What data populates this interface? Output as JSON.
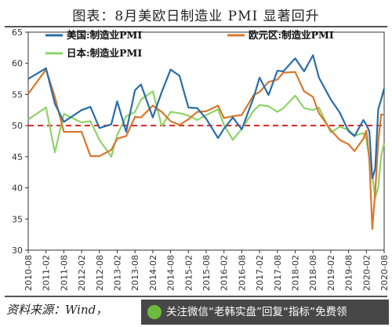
{
  "title": "图表：8月美欧日制造业 PMI 显著回升",
  "source": "资料来源：Wind，",
  "watermark": "关注微信“老韩实盘”回复“指标”免费领",
  "chart_data": {
    "type": "line",
    "title": "图表：8月美欧日制造业 PMI 显著回升",
    "xlabel": "",
    "ylabel": "",
    "ylim": [
      30,
      65
    ],
    "yticks": [
      30,
      35,
      40,
      45,
      50,
      55,
      60,
      65
    ],
    "xticks": [
      "2010-08",
      "2011-02",
      "2011-08",
      "2012-02",
      "2012-08",
      "2013-02",
      "2013-08",
      "2014-02",
      "2014-08",
      "2015-02",
      "2015-08",
      "2016-02",
      "2016-08",
      "2017-02",
      "2017-08",
      "2018-02",
      "2018-08",
      "2019-02",
      "2019-08",
      "2020-02",
      "2020-08"
    ],
    "reference_line": {
      "y": 50,
      "color": "#d62424",
      "style": "dashed"
    },
    "legend": "top",
    "series": [
      {
        "name": "美国:制造业PMI",
        "color": "#2a6ea8",
        "x": [
          "2010-08",
          "2011-02",
          "2011-05",
          "2011-08",
          "2012-02",
          "2012-05",
          "2012-08",
          "2012-12",
          "2013-02",
          "2013-05",
          "2013-08",
          "2013-10",
          "2014-02",
          "2014-05",
          "2014-08",
          "2014-11",
          "2015-02",
          "2015-05",
          "2015-08",
          "2015-12",
          "2016-02",
          "2016-05",
          "2016-08",
          "2016-12",
          "2017-02",
          "2017-05",
          "2017-08",
          "2017-10",
          "2018-02",
          "2018-05",
          "2018-08",
          "2018-10",
          "2019-02",
          "2019-05",
          "2019-08",
          "2019-10",
          "2020-01",
          "2020-02",
          "2020-03",
          "2020-04",
          "2020-05",
          "2020-06",
          "2020-07",
          "2020-08"
        ],
        "values": [
          57.5,
          59.2,
          53.5,
          50.6,
          52.5,
          53.0,
          49.6,
          50.2,
          53.9,
          49.0,
          55.7,
          56.6,
          51.3,
          55.4,
          59.0,
          58.0,
          52.9,
          52.8,
          51.1,
          48.0,
          49.5,
          51.3,
          49.4,
          54.5,
          57.7,
          54.9,
          58.8,
          58.7,
          60.8,
          58.7,
          61.3,
          57.7,
          54.2,
          52.1,
          49.1,
          48.3,
          50.9,
          50.1,
          49.1,
          41.5,
          43.1,
          52.6,
          54.2,
          56.0
        ]
      },
      {
        "name": "欧元区:制造业PMI",
        "color": "#d9782d",
        "x": [
          "2010-08",
          "2011-02",
          "2011-05",
          "2011-08",
          "2012-02",
          "2012-05",
          "2012-08",
          "2012-12",
          "2013-02",
          "2013-05",
          "2013-08",
          "2013-10",
          "2014-02",
          "2014-05",
          "2014-08",
          "2014-11",
          "2015-02",
          "2015-05",
          "2015-08",
          "2015-12",
          "2016-02",
          "2016-05",
          "2016-08",
          "2016-12",
          "2017-02",
          "2017-05",
          "2017-08",
          "2017-10",
          "2018-02",
          "2018-05",
          "2018-08",
          "2018-10",
          "2019-02",
          "2019-05",
          "2019-08",
          "2019-10",
          "2020-01",
          "2020-02",
          "2020-03",
          "2020-04",
          "2020-05",
          "2020-06",
          "2020-07",
          "2020-08"
        ],
        "values": [
          55.1,
          59.0,
          54.6,
          49.0,
          49.0,
          45.1,
          45.1,
          46.1,
          47.9,
          48.3,
          51.4,
          51.3,
          53.2,
          52.2,
          50.7,
          50.1,
          51.0,
          52.2,
          52.3,
          53.2,
          51.2,
          51.5,
          51.7,
          54.9,
          55.4,
          57.0,
          57.4,
          58.5,
          58.6,
          55.5,
          54.6,
          52.0,
          49.3,
          47.7,
          47.0,
          45.9,
          47.9,
          49.2,
          44.5,
          33.4,
          39.4,
          47.4,
          51.8,
          51.7
        ]
      },
      {
        "name": "日本:制造业PMI",
        "color": "#8fd36a",
        "x": [
          "2010-08",
          "2011-02",
          "2011-05",
          "2011-08",
          "2012-02",
          "2012-05",
          "2012-08",
          "2012-12",
          "2013-02",
          "2013-05",
          "2013-08",
          "2013-10",
          "2014-02",
          "2014-05",
          "2014-08",
          "2014-11",
          "2015-02",
          "2015-05",
          "2015-08",
          "2015-12",
          "2016-02",
          "2016-05",
          "2016-08",
          "2016-12",
          "2017-02",
          "2017-05",
          "2017-08",
          "2017-10",
          "2018-02",
          "2018-05",
          "2018-08",
          "2018-10",
          "2019-02",
          "2019-05",
          "2019-08",
          "2019-10",
          "2020-01",
          "2020-02",
          "2020-03",
          "2020-04",
          "2020-05",
          "2020-06",
          "2020-07",
          "2020-08"
        ],
        "values": [
          51.0,
          52.9,
          45.7,
          51.9,
          50.5,
          50.7,
          47.7,
          45.0,
          48.5,
          51.5,
          52.2,
          54.2,
          55.5,
          49.9,
          52.2,
          52.0,
          51.6,
          50.9,
          51.7,
          52.6,
          50.1,
          47.7,
          49.5,
          52.4,
          53.3,
          53.1,
          52.2,
          52.8,
          54.8,
          52.8,
          52.5,
          52.9,
          48.9,
          49.8,
          49.3,
          48.4,
          48.8,
          47.8,
          44.8,
          41.9,
          38.4,
          40.1,
          45.2,
          47.2
        ]
      }
    ]
  }
}
